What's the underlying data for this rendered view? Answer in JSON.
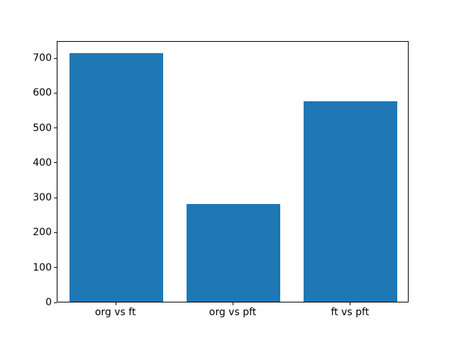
{
  "figure": {
    "background": "#ffffff"
  },
  "chart_data": {
    "type": "bar",
    "categories": [
      "org vs ft",
      "org vs pft",
      "ft vs pft"
    ],
    "values": [
      713,
      280,
      575
    ],
    "title": "",
    "xlabel": "",
    "ylabel": "",
    "ylim": [
      0,
      749
    ],
    "yticks": [
      0,
      100,
      200,
      300,
      400,
      500,
      600,
      700
    ],
    "grid": false,
    "legend": "none",
    "bar_color": "#1f77b4",
    "bar_width_fraction": 0.8,
    "axis_color": "#000000",
    "tick_label_color": "#000000"
  }
}
